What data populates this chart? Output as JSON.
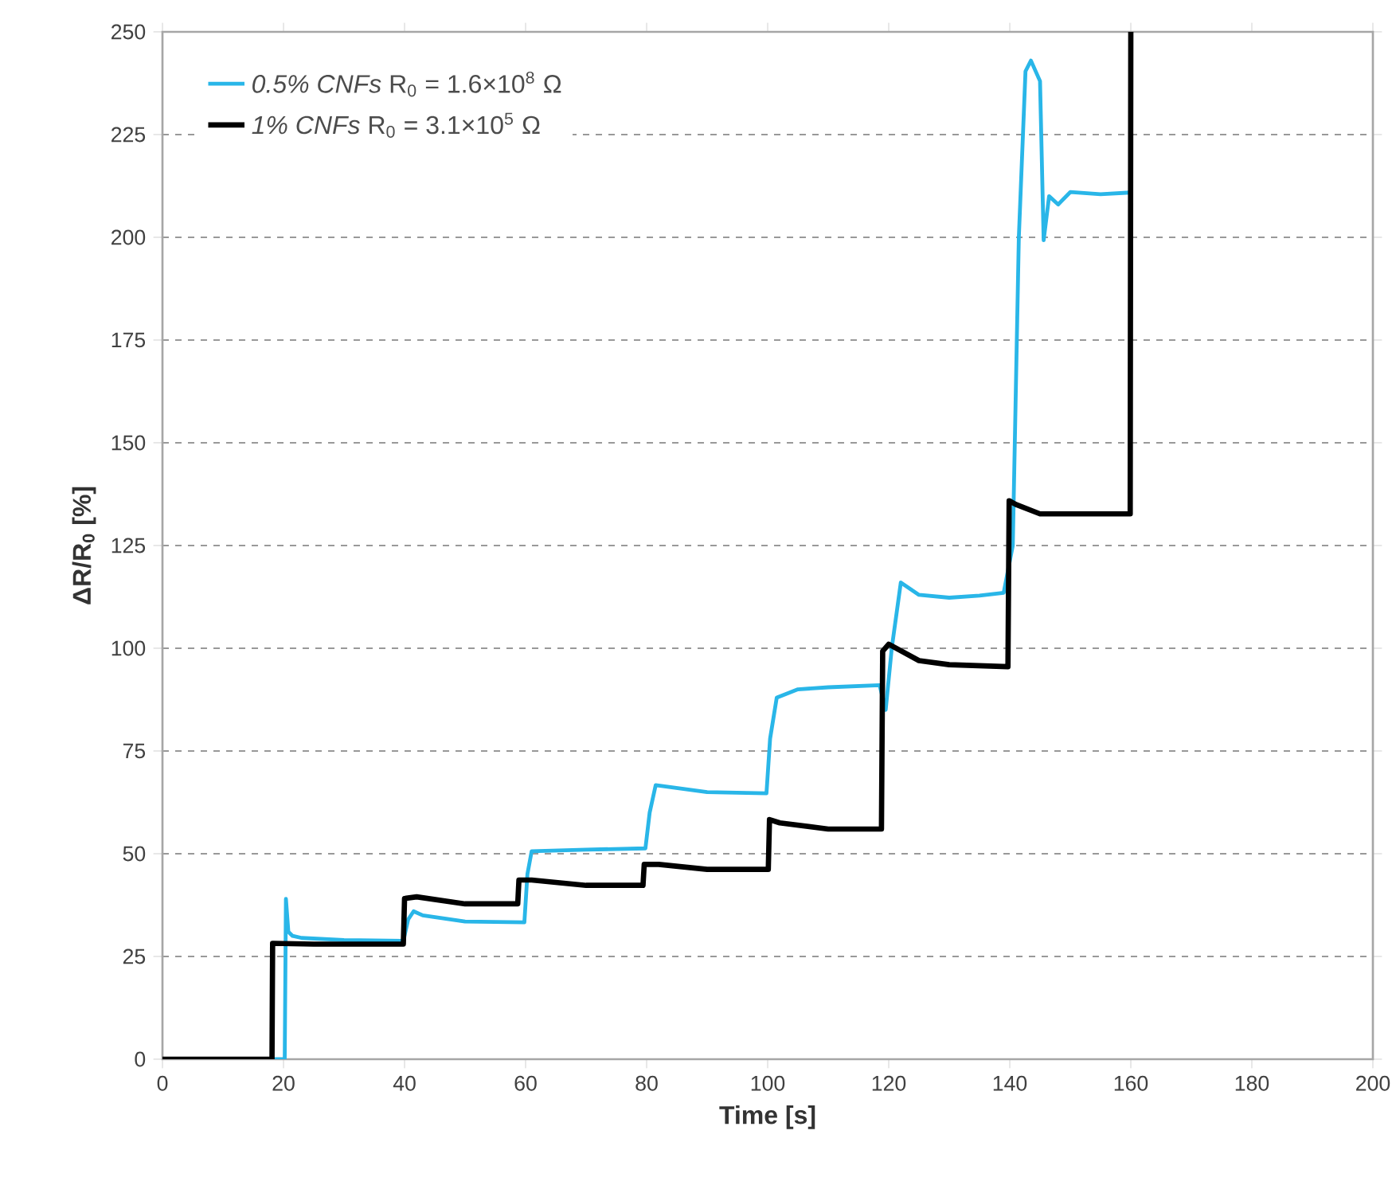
{
  "chart_data": {
    "type": "line",
    "xlabel": "Time [s]",
    "ylabel": "ΔR/R$_{0}$ [%]",
    "xlim": [
      0,
      200
    ],
    "ylim": [
      0,
      250
    ],
    "xticks": [
      0,
      20,
      40,
      60,
      80,
      100,
      120,
      140,
      160,
      180,
      200
    ],
    "yticks": [
      0,
      25,
      50,
      75,
      100,
      125,
      150,
      175,
      200,
      225,
      250
    ],
    "grid": "y",
    "legend": "top left",
    "series": [
      {
        "name": "*0.5% CNFs*   R$_{0}$ = 1.6×10$^{8}$ Ω",
        "color": "#29b6e8",
        "x": [
          0,
          20.2,
          20.4,
          20.8,
          21.5,
          23,
          30,
          39.8,
          40.6,
          41.5,
          43,
          50,
          59.8,
          60.3,
          61,
          70,
          79.8,
          80.5,
          81.5,
          90,
          99.8,
          100.4,
          101.5,
          105,
          110,
          118.5,
          119.5,
          120.5,
          122,
          125,
          130,
          135,
          139,
          140.5,
          141.5,
          142.6,
          143.5,
          145,
          145.6,
          146.5,
          148,
          150,
          155,
          159.9
        ],
        "values": [
          0,
          0,
          39,
          31,
          30,
          29.5,
          29,
          28.8,
          34,
          36,
          35,
          33.5,
          33.3,
          45,
          50.6,
          51,
          51.3,
          60,
          66.7,
          65,
          64.7,
          78,
          88,
          90,
          90.5,
          91,
          85,
          100,
          116,
          113,
          112.3,
          112.8,
          113.5,
          125,
          200,
          240.4,
          243,
          238,
          199.3,
          210,
          208,
          211,
          210.5,
          210.9
        ]
      },
      {
        "name": "*1% CNFs*   R$_{0}$ = 3.1×10$^{5}$ Ω",
        "color": "#000000",
        "x": [
          0,
          18.1,
          18.2,
          25,
          39.8,
          40,
          42,
          50,
          58.7,
          58.9,
          61,
          70,
          79.4,
          79.6,
          82,
          90,
          100.1,
          100.3,
          102,
          110,
          118.8,
          119,
          120,
          125,
          130,
          139.7,
          139.9,
          141,
          145,
          159.9,
          160
        ],
        "values": [
          0,
          0,
          28.2,
          28,
          28,
          39.1,
          39.5,
          37.8,
          37.8,
          43.6,
          43.6,
          42.3,
          42.3,
          47.4,
          47.4,
          46.2,
          46.2,
          58.3,
          57.5,
          56,
          56,
          99.3,
          101,
          97,
          96,
          95.5,
          135.9,
          135,
          132.7,
          132.7,
          250
        ]
      }
    ]
  }
}
